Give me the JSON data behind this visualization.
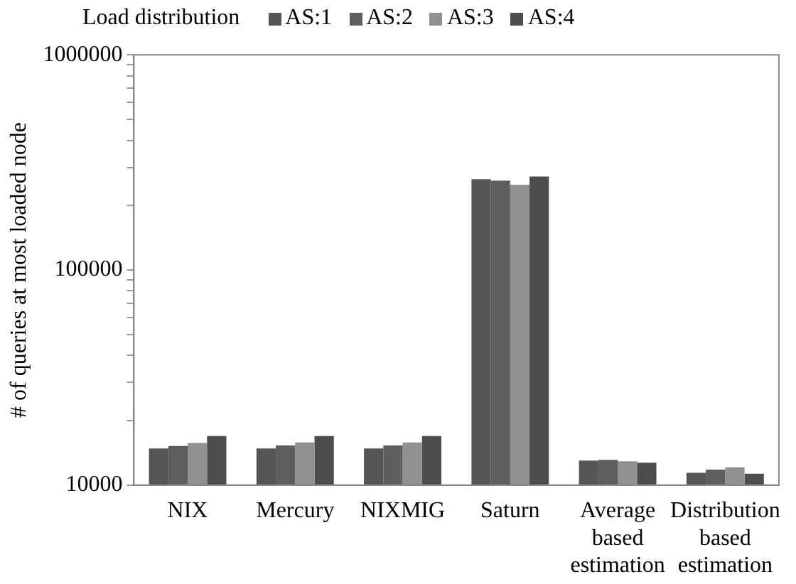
{
  "chart_data": {
    "type": "bar",
    "ylabel": "# of queries at most loaded node",
    "legend_title": "Load distribution",
    "legend": "top",
    "categories": [
      "NIX",
      "Mercury",
      "NIXMIG",
      "Saturn",
      "Average based estimation",
      "Distribution based estimation"
    ],
    "series": [
      {
        "name": "AS:1",
        "color": "#555555",
        "values": [
          14800,
          14800,
          14800,
          264000,
          13000,
          11400
        ]
      },
      {
        "name": "AS:2",
        "color": "#5e5e5e",
        "values": [
          15200,
          15300,
          15300,
          260000,
          13100,
          11800
        ]
      },
      {
        "name": "AS:3",
        "color": "#909090",
        "values": [
          15700,
          15800,
          15800,
          249000,
          12900,
          12100
        ]
      },
      {
        "name": "AS:4",
        "color": "#4d4d4d",
        "values": [
          16900,
          16900,
          16900,
          272000,
          12700,
          11300
        ]
      }
    ],
    "log": true,
    "grid": false,
    "ylim": [
      10000,
      1000000
    ],
    "yticks": [
      10000,
      {
        "value": 20000,
        "label": null
      },
      {
        "value": 30000,
        "label": null
      },
      {
        "value": 40000,
        "label": null
      },
      {
        "value": 50000,
        "label": null
      },
      {
        "value": 60000,
        "label": null
      },
      {
        "value": 70000,
        "label": null
      },
      {
        "value": 80000,
        "label": null
      },
      {
        "value": 90000,
        "label": null
      },
      100000,
      {
        "value": 200000,
        "label": null
      },
      {
        "value": 300000,
        "label": null
      },
      {
        "value": 400000,
        "label": null
      },
      {
        "value": 500000,
        "label": null
      },
      {
        "value": 600000,
        "label": null
      },
      {
        "value": 700000,
        "label": null
      },
      {
        "value": 800000,
        "label": null
      },
      {
        "value": 900000,
        "label": null
      },
      1000000
    ]
  }
}
